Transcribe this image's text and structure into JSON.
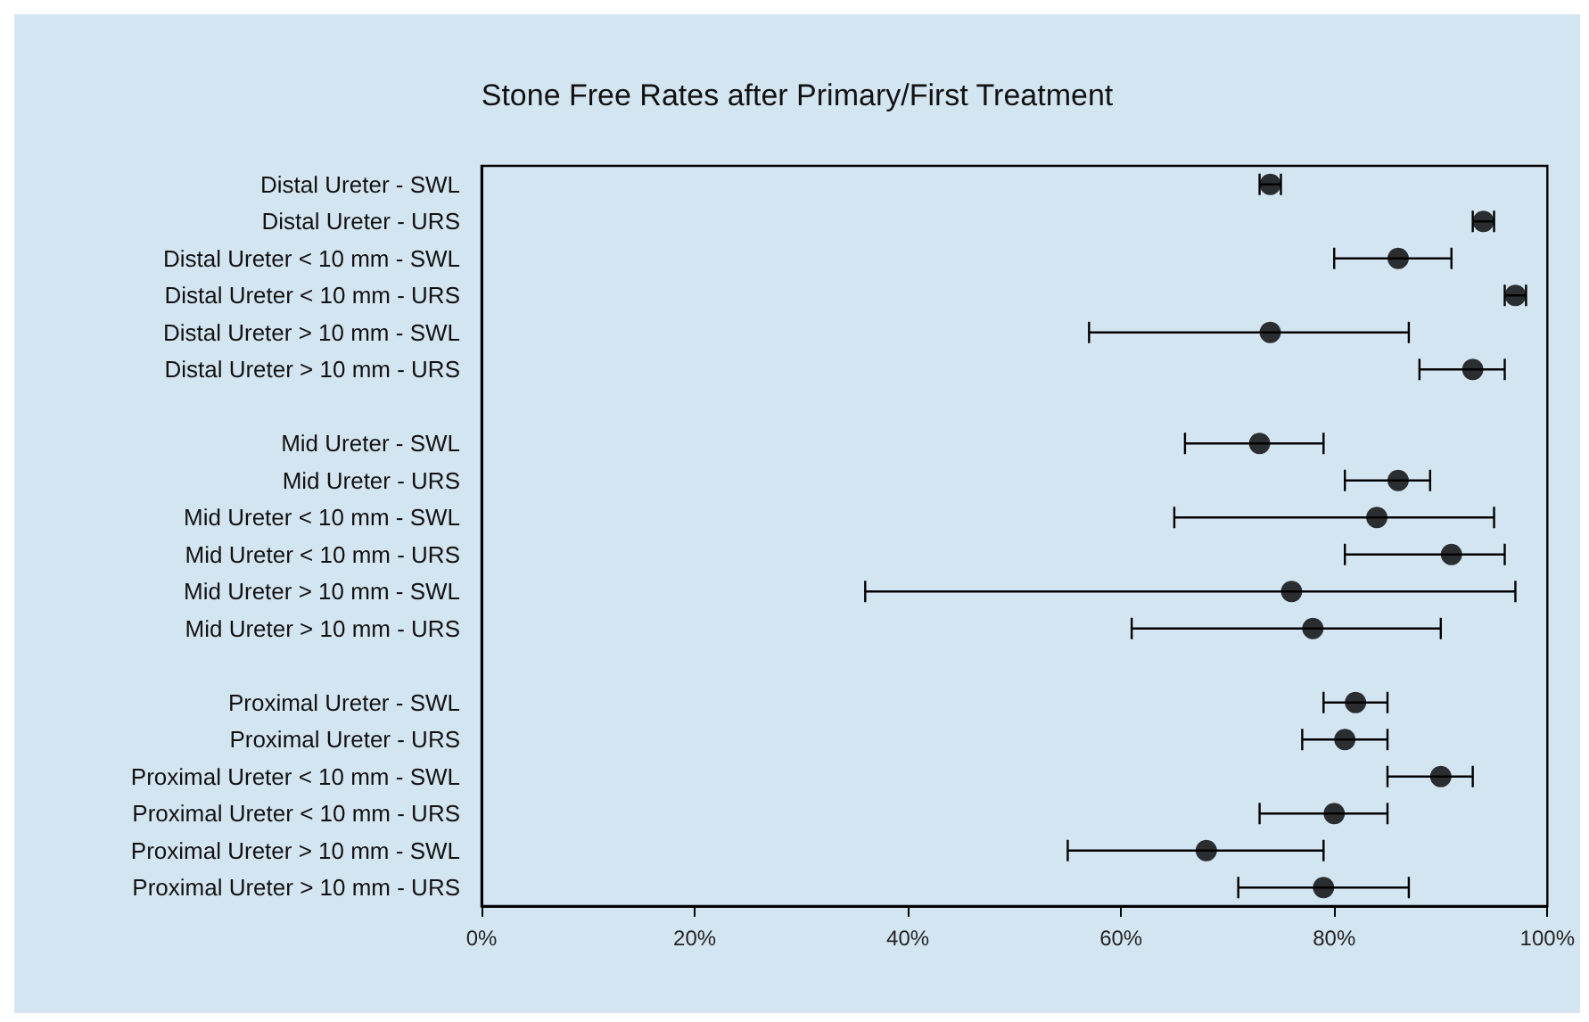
{
  "chart_data": {
    "type": "scatter",
    "orientation": "horizontal",
    "title": "Stone Free Rates after Primary/First Treatment",
    "categories": [
      "Distal Ureter - SWL",
      "Distal Ureter - URS",
      "Distal Ureter < 10 mm - SWL",
      "Distal Ureter < 10 mm - URS",
      "Distal Ureter > 10 mm - SWL",
      "Distal Ureter > 10 mm - URS",
      null,
      "Mid Ureter - SWL",
      "Mid Ureter - URS",
      "Mid Ureter < 10 mm - SWL",
      "Mid Ureter < 10 mm - URS",
      "Mid Ureter > 10 mm - SWL",
      "Mid Ureter > 10 mm - URS",
      null,
      "Proximal Ureter - SWL",
      "Proximal Ureter - URS",
      "Proximal Ureter < 10 mm - SWL",
      "Proximal Ureter < 10 mm - URS",
      "Proximal Ureter > 10 mm - SWL",
      "Proximal Ureter > 10 mm - URS"
    ],
    "values": [
      74,
      94,
      86,
      97,
      74,
      93,
      null,
      73,
      86,
      84,
      91,
      76,
      78,
      null,
      82,
      81,
      90,
      80,
      68,
      79
    ],
    "errors": [
      [
        73,
        75
      ],
      [
        93,
        95
      ],
      [
        80,
        91
      ],
      [
        96,
        98
      ],
      [
        57,
        87
      ],
      [
        88,
        96
      ],
      null,
      [
        66,
        79
      ],
      [
        81,
        89
      ],
      [
        65,
        95
      ],
      [
        81,
        96
      ],
      [
        36,
        97
      ],
      [
        61,
        90
      ],
      null,
      [
        79,
        85
      ],
      [
        77,
        85
      ],
      [
        85,
        93
      ],
      [
        73,
        85
      ],
      [
        55,
        79
      ],
      [
        71,
        87
      ]
    ],
    "color": "#000000",
    "marker": "circle",
    "grid": false,
    "xlim": [
      0,
      100
    ],
    "xticks": [
      {
        "value": 0,
        "label": "0%"
      },
      {
        "value": 20,
        "label": "20%"
      },
      {
        "value": 40,
        "label": "40%"
      },
      {
        "value": 60,
        "label": "60%"
      },
      {
        "value": 80,
        "label": "80%"
      },
      {
        "value": 100,
        "label": "100%"
      }
    ]
  }
}
